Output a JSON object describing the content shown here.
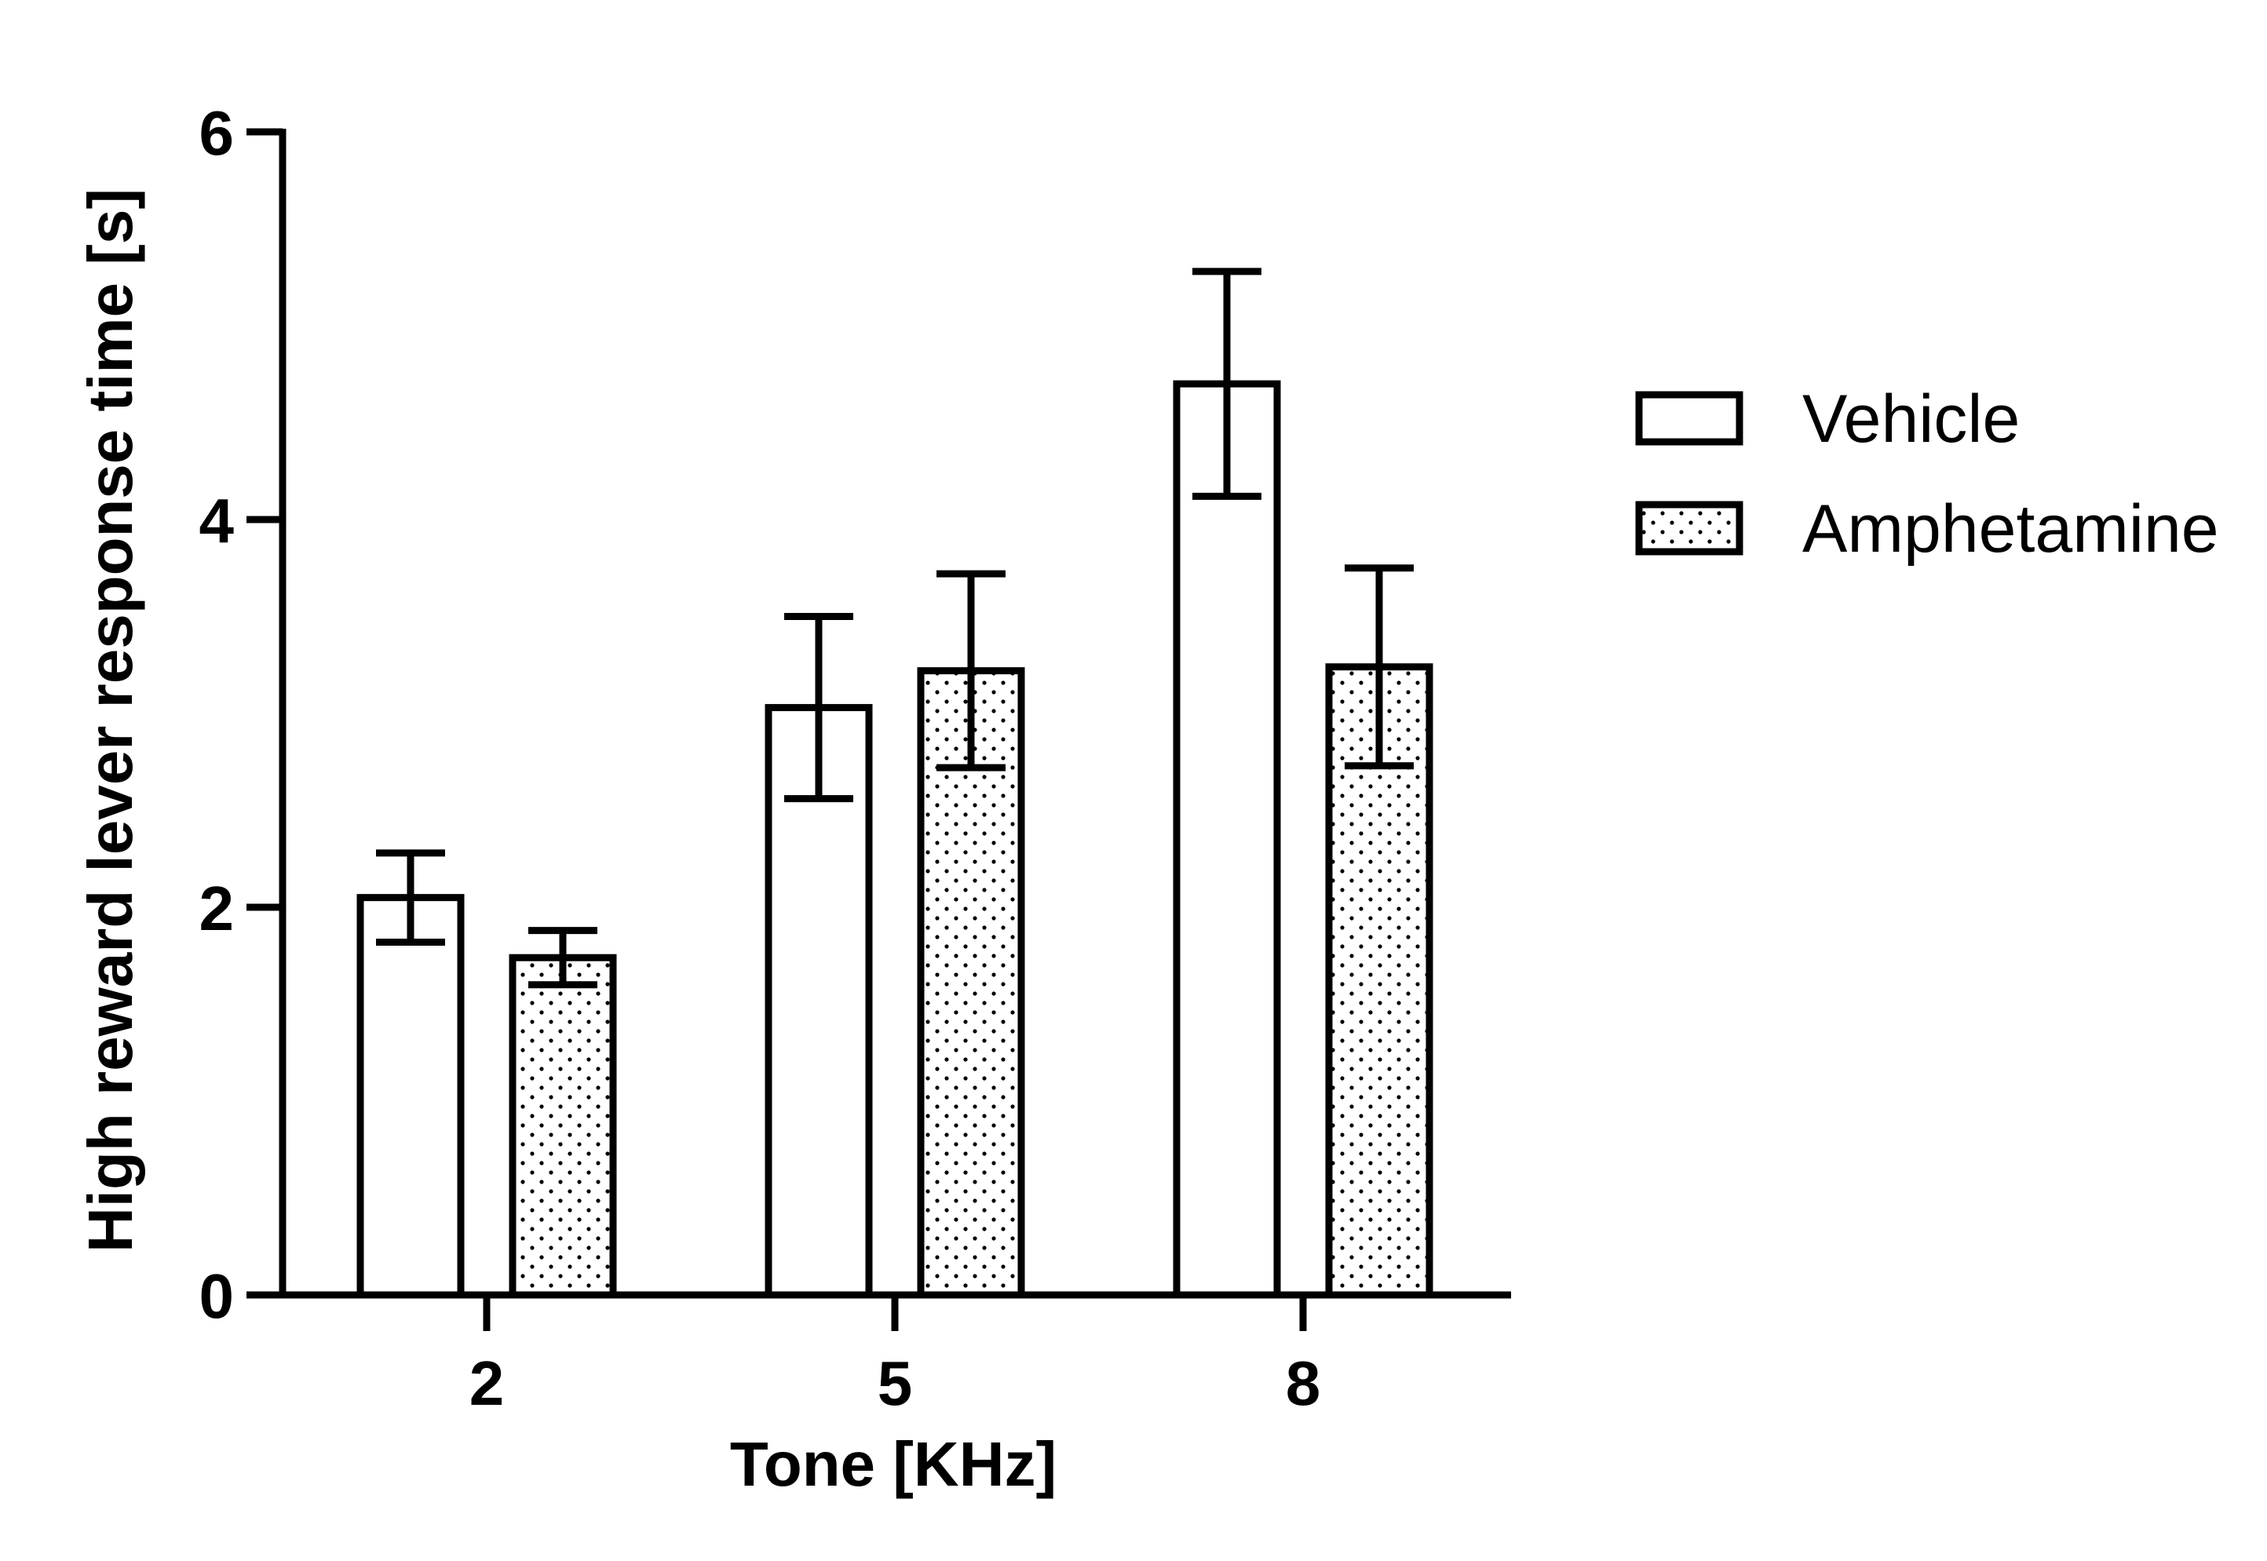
{
  "chart_data": {
    "type": "bar",
    "xlabel": "Tone [KHz]",
    "ylabel": "High reward lever response time [s]",
    "categories": [
      "2",
      "5",
      "8"
    ],
    "ylim": [
      0,
      6
    ],
    "yticks": [
      "0",
      "2",
      "4",
      "6"
    ],
    "series": [
      {
        "name": "Vehicle",
        "pattern": "none",
        "values": [
          2.05,
          3.03,
          4.7
        ],
        "errors": [
          0.23,
          0.47,
          0.58
        ]
      },
      {
        "name": "Amphetamine",
        "pattern": "dots",
        "values": [
          1.74,
          3.22,
          3.24
        ],
        "errors": [
          0.14,
          0.5,
          0.51
        ]
      }
    ],
    "legend": "right",
    "grid": false
  },
  "colors": {
    "stroke": "#000000",
    "fill": "#ffffff"
  }
}
